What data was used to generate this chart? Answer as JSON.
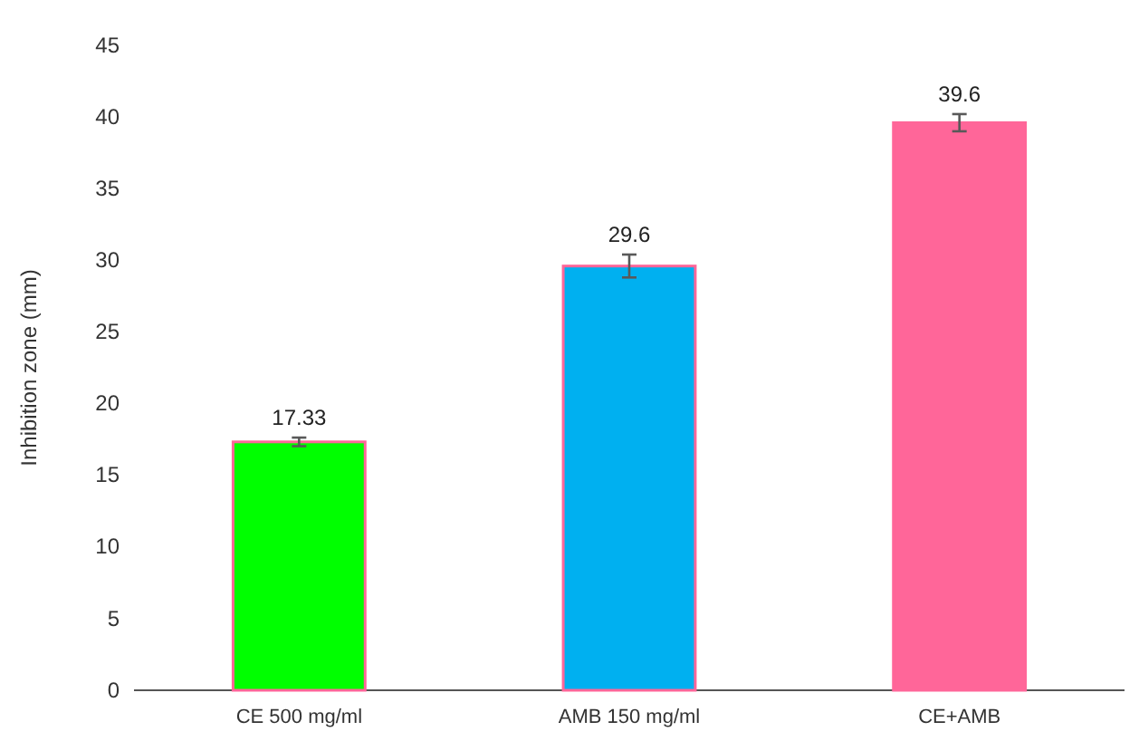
{
  "chart_data": {
    "type": "bar",
    "ylabel": "Inhibition zone (mm)",
    "categories": [
      "CE 500 mg/ml",
      "AMB 150 mg/ml",
      "CE+AMB"
    ],
    "values": [
      17.33,
      29.6,
      39.6
    ],
    "colors": [
      "#00ff00",
      "#00b0f0",
      "#ff6699"
    ],
    "errors": [
      0.3,
      0.8,
      0.6
    ],
    "data_labels": true,
    "ylim": [
      0,
      45
    ],
    "yticks": [
      0,
      5,
      10,
      15,
      20,
      25,
      30,
      35,
      40,
      45
    ],
    "grid": false
  }
}
